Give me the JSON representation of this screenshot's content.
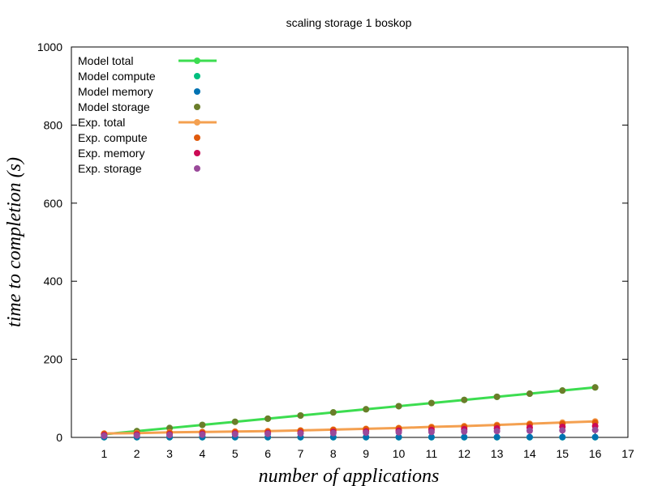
{
  "chart_data": {
    "type": "line",
    "title": "scaling storage 1 boskop",
    "xlabel": "number of applications",
    "ylabel": "time to completion (s)",
    "xlim": [
      0,
      17
    ],
    "ylim": [
      0,
      1000
    ],
    "xticks": [
      1,
      2,
      3,
      4,
      5,
      6,
      7,
      8,
      9,
      10,
      11,
      12,
      13,
      14,
      15,
      16,
      17
    ],
    "yticks": [
      0,
      200,
      400,
      600,
      800,
      1000
    ],
    "grid": false,
    "legend_position": "top-left",
    "x": [
      1,
      2,
      3,
      4,
      5,
      6,
      7,
      8,
      9,
      10,
      11,
      12,
      13,
      14,
      15,
      16
    ],
    "series": [
      {
        "name": "Model total",
        "style": "linespoints",
        "color": "#3cdd50",
        "values": [
          8,
          16,
          24,
          32,
          40,
          48,
          56,
          64,
          72,
          80,
          88,
          96,
          104,
          112,
          120,
          128
        ]
      },
      {
        "name": "Model compute",
        "style": "points",
        "color": "#00bf7f",
        "values": [
          0.3,
          0.3,
          0.3,
          0.3,
          0.3,
          0.3,
          0.3,
          0.3,
          0.3,
          0.3,
          0.3,
          0.3,
          0.3,
          0.3,
          0.3,
          0.3
        ]
      },
      {
        "name": "Model memory",
        "style": "points",
        "color": "#0072b2",
        "values": [
          0.8,
          0.8,
          0.8,
          0.8,
          0.8,
          0.8,
          0.8,
          0.8,
          0.8,
          0.8,
          0.8,
          0.8,
          0.8,
          0.8,
          0.8,
          0.8
        ]
      },
      {
        "name": "Model storage",
        "style": "points",
        "color": "#6b7d2a",
        "values": [
          8,
          16,
          24,
          32,
          40,
          48,
          56,
          64,
          72,
          80,
          88,
          96,
          104,
          112,
          120,
          128
        ]
      },
      {
        "name": "Exp.  total",
        "style": "linespoints",
        "color": "#f4a050",
        "values": [
          10,
          11,
          13,
          14,
          15,
          16,
          18,
          20,
          22,
          24,
          27,
          29,
          32,
          35,
          38,
          41
        ]
      },
      {
        "name": "Exp.  compute",
        "style": "points",
        "color": "#e05a0c",
        "values": [
          9,
          10,
          12,
          13,
          14,
          15,
          17,
          19,
          21,
          23,
          25,
          27,
          30,
          33,
          35,
          38
        ]
      },
      {
        "name": "Exp.  memory",
        "style": "points",
        "color": "#cc0a55",
        "values": [
          6,
          7,
          8,
          9,
          10,
          11,
          12,
          14,
          15,
          17,
          19,
          21,
          23,
          25,
          27,
          29
        ]
      },
      {
        "name": "Exp.  storage",
        "style": "points",
        "color": "#9a4a9a",
        "values": [
          4,
          5,
          6,
          7,
          8,
          9,
          10,
          11,
          12,
          13,
          14,
          15,
          16,
          17,
          18,
          19
        ]
      }
    ]
  }
}
